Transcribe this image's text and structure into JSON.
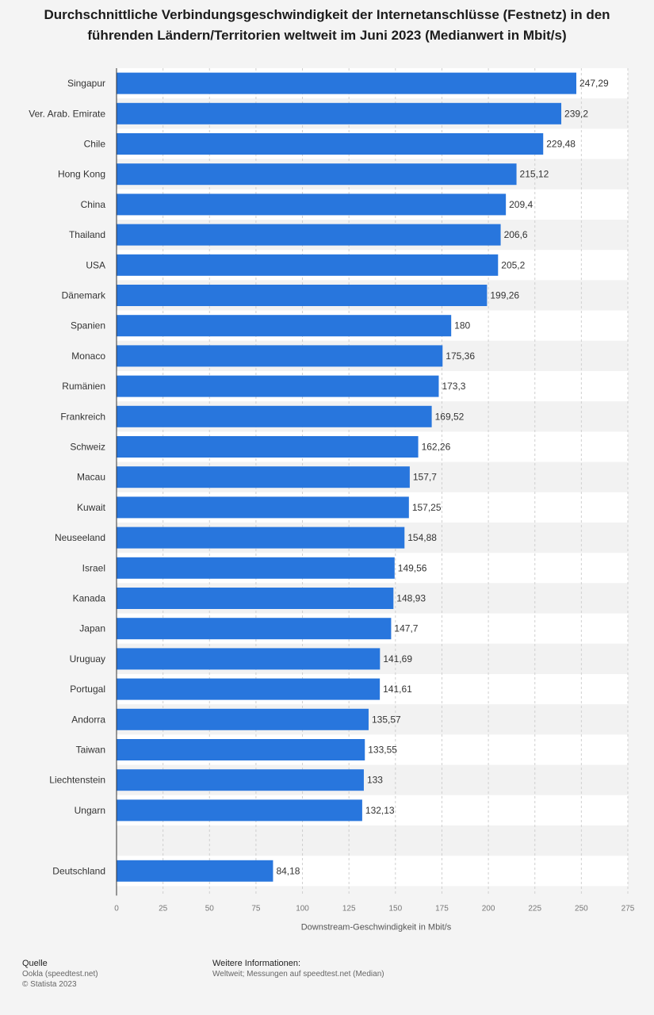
{
  "title": "Durchschnittliche Verbindungsgeschwindigkeit der Internetanschlüsse (Festnetz) in den führenden Ländern/Territorien weltweit im Juni 2023 (Medianwert in Mbit/s)",
  "chart_data": {
    "type": "bar",
    "orientation": "horizontal",
    "categories": [
      "Singapur",
      "Ver. Arab. Emirate",
      "Chile",
      "Hong Kong",
      "China",
      "Thailand",
      "USA",
      "Dänemark",
      "Spanien",
      "Monaco",
      "Rumänien",
      "Frankreich",
      "Schweiz",
      "Macau",
      "Kuwait",
      "Neuseeland",
      "Israel",
      "Kanada",
      "Japan",
      "Uruguay",
      "Portugal",
      "Andorra",
      "Taiwan",
      "Liechtenstein",
      "Ungarn",
      "",
      "Deutschland"
    ],
    "values": [
      247.29,
      239.2,
      229.48,
      215.12,
      209.4,
      206.6,
      205.2,
      199.26,
      180,
      175.36,
      173.3,
      169.52,
      162.26,
      157.7,
      157.25,
      154.88,
      149.56,
      148.93,
      147.7,
      141.69,
      141.61,
      135.57,
      133.55,
      133,
      132.13,
      null,
      84.18
    ],
    "value_labels": [
      "247,29",
      "239,2",
      "229,48",
      "215,12",
      "209,4",
      "206,6",
      "205,2",
      "199,26",
      "180",
      "175,36",
      "173,3",
      "169,52",
      "162,26",
      "157,7",
      "157,25",
      "154,88",
      "149,56",
      "148,93",
      "147,7",
      "141,69",
      "141,61",
      "135,57",
      "133,55",
      "133",
      "132,13",
      "",
      "84,18"
    ],
    "xlabel": "Downstream-Geschwindigkeit in Mbit/s",
    "ylabel": "",
    "xlim": [
      0,
      275
    ],
    "ticks": [
      0,
      25,
      50,
      75,
      100,
      125,
      150,
      175,
      200,
      225,
      250,
      275
    ],
    "tick_labels": [
      "0",
      "25",
      "50",
      "75",
      "100",
      "125",
      "150",
      "175",
      "200",
      "225",
      "250",
      "275"
    ],
    "grid": true,
    "bar_color": "#2876dd"
  },
  "footer": {
    "source_heading": "Quelle",
    "source_line1": "Ookla (speedtest.net)",
    "source_line2": "© Statista 2023",
    "info_heading": "Weitere Informationen:",
    "info_text": "Weltweit; Messungen auf speedtest.net (Median)"
  }
}
